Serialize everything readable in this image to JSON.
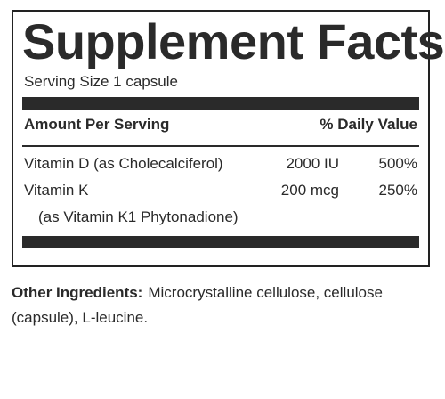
{
  "panel": {
    "title": "Supplement Facts",
    "serving_size": "Serving Size 1 capsule",
    "header": {
      "amount_label": "Amount Per Serving",
      "dv_label": "% Daily Value"
    },
    "rows": [
      {
        "name": "Vitamin D (as Cholecalciferol)",
        "amount": "2000 IU",
        "daily_value": "500%"
      },
      {
        "name": "Vitamin K",
        "amount": "200 mcg",
        "daily_value": "250%",
        "source": "(as Vitamin K1 Phytonadione)"
      }
    ]
  },
  "other_ingredients": {
    "label": "Other Ingredients:",
    "text": "Microcrystalline cellulose, cellulose (capsule), L-leucine."
  },
  "colors": {
    "ink": "#2a2a2a",
    "background": "#ffffff"
  }
}
